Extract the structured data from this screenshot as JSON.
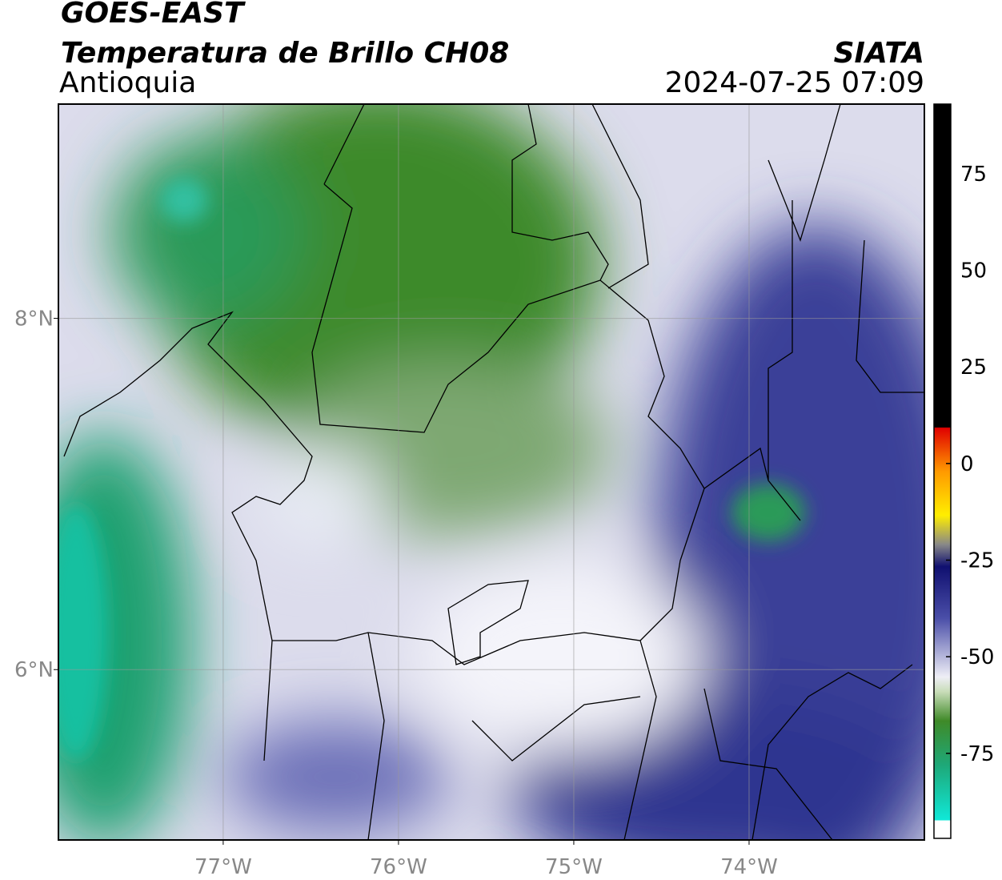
{
  "header": {
    "title": "GOES-EAST",
    "subtitle": "Temperatura de Brillo CH08",
    "region": "Antioquia",
    "source": "SIATA",
    "datetime": "2024-07-25 07:09"
  },
  "map": {
    "xlim": [
      -77.94,
      -73.0
    ],
    "ylim": [
      5.03,
      9.22
    ],
    "xticks": [
      {
        "value": -77,
        "label": "77°W"
      },
      {
        "value": -76,
        "label": "76°W"
      },
      {
        "value": -75,
        "label": "75°W"
      },
      {
        "value": -74,
        "label": "74°W"
      }
    ],
    "yticks": [
      {
        "value": 8,
        "label": "8°N"
      },
      {
        "value": 6,
        "label": "6°N"
      }
    ],
    "grid": true
  },
  "colorbar": {
    "lim": [
      -97,
      93
    ],
    "ticks": [
      75,
      50,
      25,
      0,
      -25,
      -50,
      -75
    ]
  }
}
